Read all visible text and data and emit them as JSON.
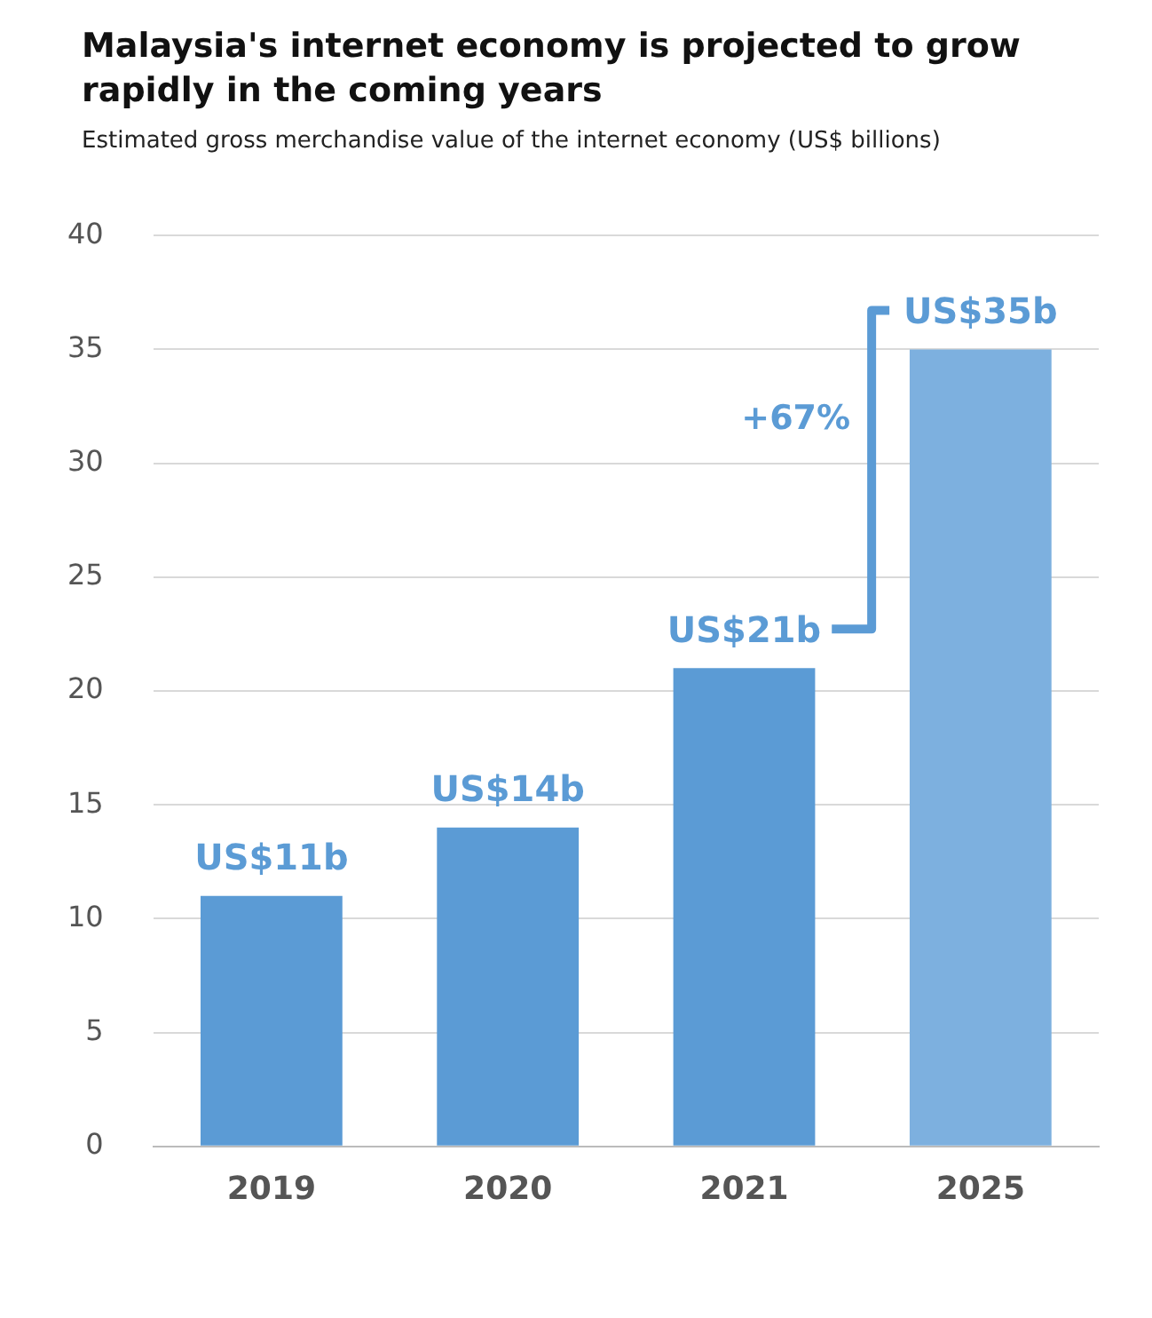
{
  "chart_data": {
    "type": "bar",
    "title": "Malaysia's internet economy is projected to grow rapidly in the coming years",
    "subtitle": "Estimated gross merchandise value of the internet economy (US$ billions)",
    "categories": [
      "2019",
      "2020",
      "2021",
      "2025"
    ],
    "values": [
      11,
      14,
      21,
      35
    ],
    "colors": [
      "#5b9bd5",
      "#5b9bd5",
      "#5b9bd5",
      "#7db0df"
    ],
    "value_labels": [
      "US$11b",
      "US$14b",
      "US$21b",
      "US$35b"
    ],
    "annotations": [
      "+67%"
    ],
    "ylim": [
      0,
      40
    ],
    "yticks": [
      0,
      5,
      10,
      15,
      20,
      25,
      30,
      35,
      40
    ],
    "grid": "y",
    "legend": false
  }
}
